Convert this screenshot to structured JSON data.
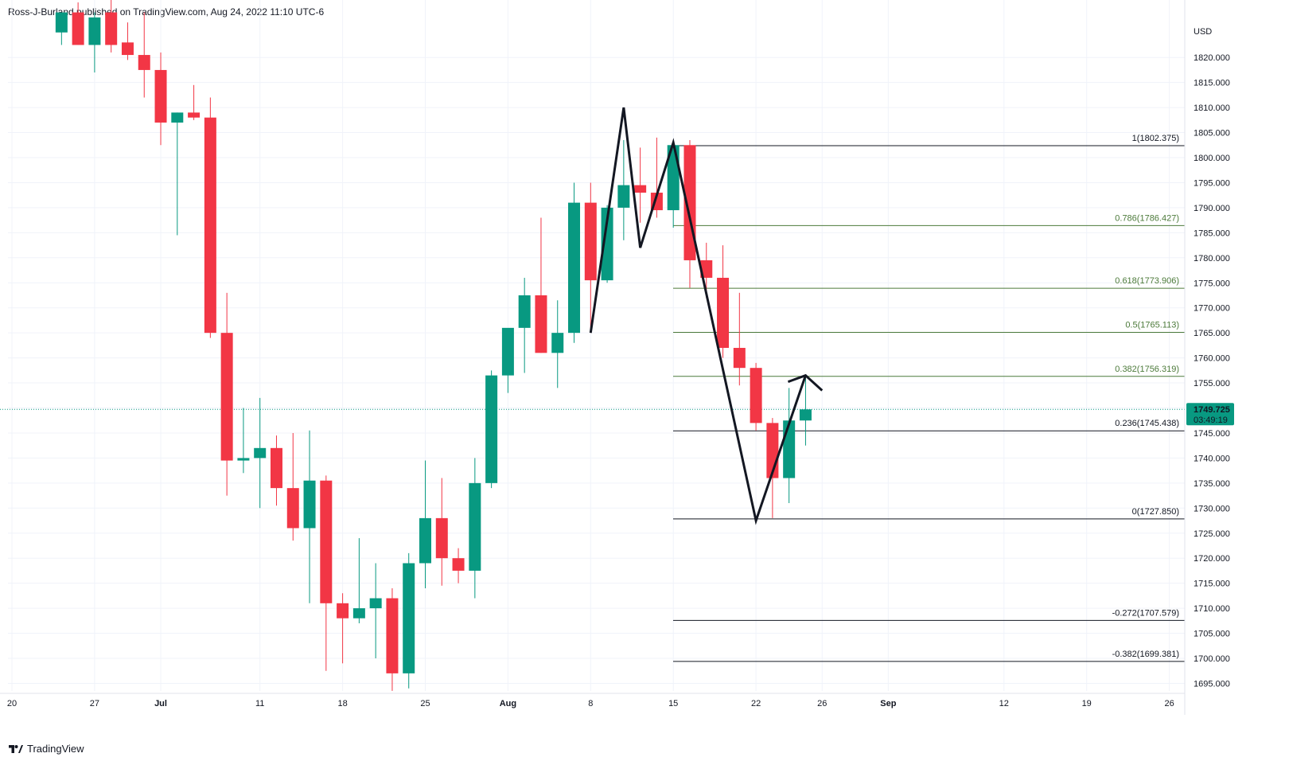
{
  "header": {
    "text": "Ross-J-Burland published on TradingView.com, Aug 24, 2022 11:10 UTC-6"
  },
  "footer": {
    "brand": "TradingView",
    "icon": "tradingview-logo-icon"
  },
  "colors": {
    "up": "#089981",
    "down": "#f23645",
    "fib_level": "#4c7a3a",
    "fib_edge": "#131722",
    "pattern": "#131722",
    "price_line": "#089981"
  },
  "price_axis": {
    "currency": "USD",
    "ticks": [
      "1820.000",
      "1815.000",
      "1810.000",
      "1805.000",
      "1800.000",
      "1795.000",
      "1790.000",
      "1785.000",
      "1780.000",
      "1775.000",
      "1770.000",
      "1765.000",
      "1760.000",
      "1755.000",
      "1750.000",
      "1745.000",
      "1740.000",
      "1735.000",
      "1730.000",
      "1725.000",
      "1720.000",
      "1715.000",
      "1710.000",
      "1705.000",
      "1700.000",
      "1695.000"
    ],
    "last_price": "1749.725",
    "countdown": "03:49:19"
  },
  "chart_data": {
    "type": "candlestick",
    "title": "",
    "xlabel": "",
    "ylabel": "USD",
    "ylim": [
      1692.5,
      1826.5
    ],
    "x_tick_labels": [
      "20",
      "27",
      "Jul",
      "11",
      "18",
      "25",
      "Aug",
      "8",
      "15",
      "22",
      "26",
      "Sep",
      "12",
      "19",
      "26"
    ],
    "candles": [
      {
        "date": "2022-06-23",
        "o": 1825.0,
        "h": 1828.0,
        "l": 1822.5,
        "c": 1829.0
      },
      {
        "date": "2022-06-24",
        "o": 1829.0,
        "h": 1831.0,
        "l": 1822.5,
        "c": 1822.5
      },
      {
        "date": "2022-06-27",
        "o": 1822.5,
        "h": 1829.0,
        "l": 1817.0,
        "c": 1828.0
      },
      {
        "date": "2022-06-28",
        "o": 1829.0,
        "h": 1832.0,
        "l": 1821.0,
        "c": 1822.5
      },
      {
        "date": "2022-06-29",
        "o": 1823.0,
        "h": 1827.0,
        "l": 1819.5,
        "c": 1820.5
      },
      {
        "date": "2022-06-30",
        "o": 1820.5,
        "h": 1829.0,
        "l": 1812.0,
        "c": 1817.5
      },
      {
        "date": "2022-07-01",
        "o": 1817.5,
        "h": 1821.0,
        "l": 1802.5,
        "c": 1807.0
      },
      {
        "date": "2022-07-04",
        "o": 1807.0,
        "h": 1809.0,
        "l": 1784.5,
        "c": 1809.0
      },
      {
        "date": "2022-07-05",
        "o": 1809.0,
        "h": 1814.5,
        "l": 1807.5,
        "c": 1808.0
      },
      {
        "date": "2022-07-06",
        "o": 1808.0,
        "h": 1812.0,
        "l": 1764.0,
        "c": 1765.0
      },
      {
        "date": "2022-07-07",
        "o": 1765.0,
        "h": 1773.0,
        "l": 1732.5,
        "c": 1739.5
      },
      {
        "date": "2022-07-08",
        "o": 1739.5,
        "h": 1750.0,
        "l": 1737.0,
        "c": 1740.0
      },
      {
        "date": "2022-07-11",
        "o": 1740.0,
        "h": 1752.0,
        "l": 1730.0,
        "c": 1742.0
      },
      {
        "date": "2022-07-12",
        "o": 1742.0,
        "h": 1744.5,
        "l": 1730.5,
        "c": 1734.0
      },
      {
        "date": "2022-07-13",
        "o": 1734.0,
        "h": 1745.0,
        "l": 1723.5,
        "c": 1726.0
      },
      {
        "date": "2022-07-14",
        "o": 1726.0,
        "h": 1745.5,
        "l": 1711.0,
        "c": 1735.5
      },
      {
        "date": "2022-07-15",
        "o": 1735.5,
        "h": 1736.5,
        "l": 1697.5,
        "c": 1711.0
      },
      {
        "date": "2022-07-18",
        "o": 1711.0,
        "h": 1713.0,
        "l": 1699.0,
        "c": 1708.0
      },
      {
        "date": "2022-07-19",
        "o": 1708.0,
        "h": 1724.0,
        "l": 1707.0,
        "c": 1710.0
      },
      {
        "date": "2022-07-20",
        "o": 1710.0,
        "h": 1719.0,
        "l": 1700.0,
        "c": 1712.0
      },
      {
        "date": "2022-07-21",
        "o": 1712.0,
        "h": 1714.0,
        "l": 1693.5,
        "c": 1697.0
      },
      {
        "date": "2022-07-22",
        "o": 1697.0,
        "h": 1721.0,
        "l": 1694.0,
        "c": 1719.0
      },
      {
        "date": "2022-07-25",
        "o": 1719.0,
        "h": 1739.5,
        "l": 1714.0,
        "c": 1728.0
      },
      {
        "date": "2022-07-26",
        "o": 1728.0,
        "h": 1736.0,
        "l": 1714.5,
        "c": 1720.0
      },
      {
        "date": "2022-07-27",
        "o": 1720.0,
        "h": 1722.0,
        "l": 1715.0,
        "c": 1717.5
      },
      {
        "date": "2022-07-28",
        "o": 1717.5,
        "h": 1740.0,
        "l": 1712.0,
        "c": 1735.0
      },
      {
        "date": "2022-07-29",
        "o": 1735.0,
        "h": 1757.5,
        "l": 1734.0,
        "c": 1756.5
      },
      {
        "date": "2022-08-01",
        "o": 1756.5,
        "h": 1765.5,
        "l": 1753.0,
        "c": 1766.0
      },
      {
        "date": "2022-08-02",
        "o": 1766.0,
        "h": 1776.0,
        "l": 1757.0,
        "c": 1772.5
      },
      {
        "date": "2022-08-03",
        "o": 1772.5,
        "h": 1788.0,
        "l": 1761.0,
        "c": 1761.0
      },
      {
        "date": "2022-08-04",
        "o": 1761.0,
        "h": 1771.5,
        "l": 1754.0,
        "c": 1765.0
      },
      {
        "date": "2022-08-05",
        "o": 1765.0,
        "h": 1795.0,
        "l": 1763.0,
        "c": 1791.0
      },
      {
        "date": "2022-08-08",
        "o": 1791.0,
        "h": 1795.0,
        "l": 1765.0,
        "c": 1775.5
      },
      {
        "date": "2022-08-09",
        "o": 1775.5,
        "h": 1790.5,
        "l": 1775.0,
        "c": 1790.0
      },
      {
        "date": "2022-08-10",
        "o": 1790.0,
        "h": 1803.5,
        "l": 1783.5,
        "c": 1794.5
      },
      {
        "date": "2022-08-11",
        "o": 1794.5,
        "h": 1802.0,
        "l": 1787.0,
        "c": 1793.0
      },
      {
        "date": "2022-08-12",
        "o": 1793.0,
        "h": 1804.0,
        "l": 1788.0,
        "c": 1789.5
      },
      {
        "date": "2022-08-15",
        "o": 1789.5,
        "h": 1802.5,
        "l": 1786.0,
        "c": 1802.5
      },
      {
        "date": "2022-08-16",
        "o": 1802.5,
        "h": 1803.5,
        "l": 1774.0,
        "c": 1779.5
      },
      {
        "date": "2022-08-17",
        "o": 1779.5,
        "h": 1783.0,
        "l": 1772.0,
        "c": 1776.0
      },
      {
        "date": "2022-08-18",
        "o": 1776.0,
        "h": 1782.5,
        "l": 1760.0,
        "c": 1762.0
      },
      {
        "date": "2022-08-19",
        "o": 1762.0,
        "h": 1773.0,
        "l": 1754.5,
        "c": 1758.0
      },
      {
        "date": "2022-08-22",
        "o": 1758.0,
        "h": 1759.0,
        "l": 1745.5,
        "c": 1747.0
      },
      {
        "date": "2022-08-23",
        "o": 1747.0,
        "h": 1748.0,
        "l": 1728.0,
        "c": 1736.0
      },
      {
        "date": "2022-08-24",
        "o": 1736.0,
        "h": 1754.0,
        "l": 1731.0,
        "c": 1747.5
      },
      {
        "date": "2022-08-25",
        "o": 1747.5,
        "h": 1756.0,
        "l": 1742.5,
        "c": 1749.725
      }
    ],
    "fib_levels": [
      {
        "label": "1(1802.375)",
        "value": 1802.375
      },
      {
        "label": "0.786(1786.427)",
        "value": 1786.427
      },
      {
        "label": "0.618(1773.906)",
        "value": 1773.906
      },
      {
        "label": "0.5(1765.113)",
        "value": 1765.113
      },
      {
        "label": "0.382(1756.319)",
        "value": 1756.319
      },
      {
        "label": "0.236(1745.438)",
        "value": 1745.438
      },
      {
        "label": "0(1727.850)",
        "value": 1727.85
      },
      {
        "label": "-0.272(1707.579)",
        "value": 1707.579
      },
      {
        "label": "-0.382(1699.381)",
        "value": 1699.381
      }
    ],
    "pattern_path": [
      {
        "date": "2022-08-08",
        "y": 1765.0
      },
      {
        "date": "2022-08-10",
        "y": 1810.0
      },
      {
        "date": "2022-08-11",
        "y": 1782.0
      },
      {
        "date": "2022-08-15",
        "y": 1803.0
      },
      {
        "date": "2022-08-22",
        "y": 1727.5
      },
      {
        "date": "2022-08-25",
        "y": 1756.5
      }
    ],
    "arrowhead": {
      "date": "2022-08-26",
      "y": 1753.5
    }
  }
}
